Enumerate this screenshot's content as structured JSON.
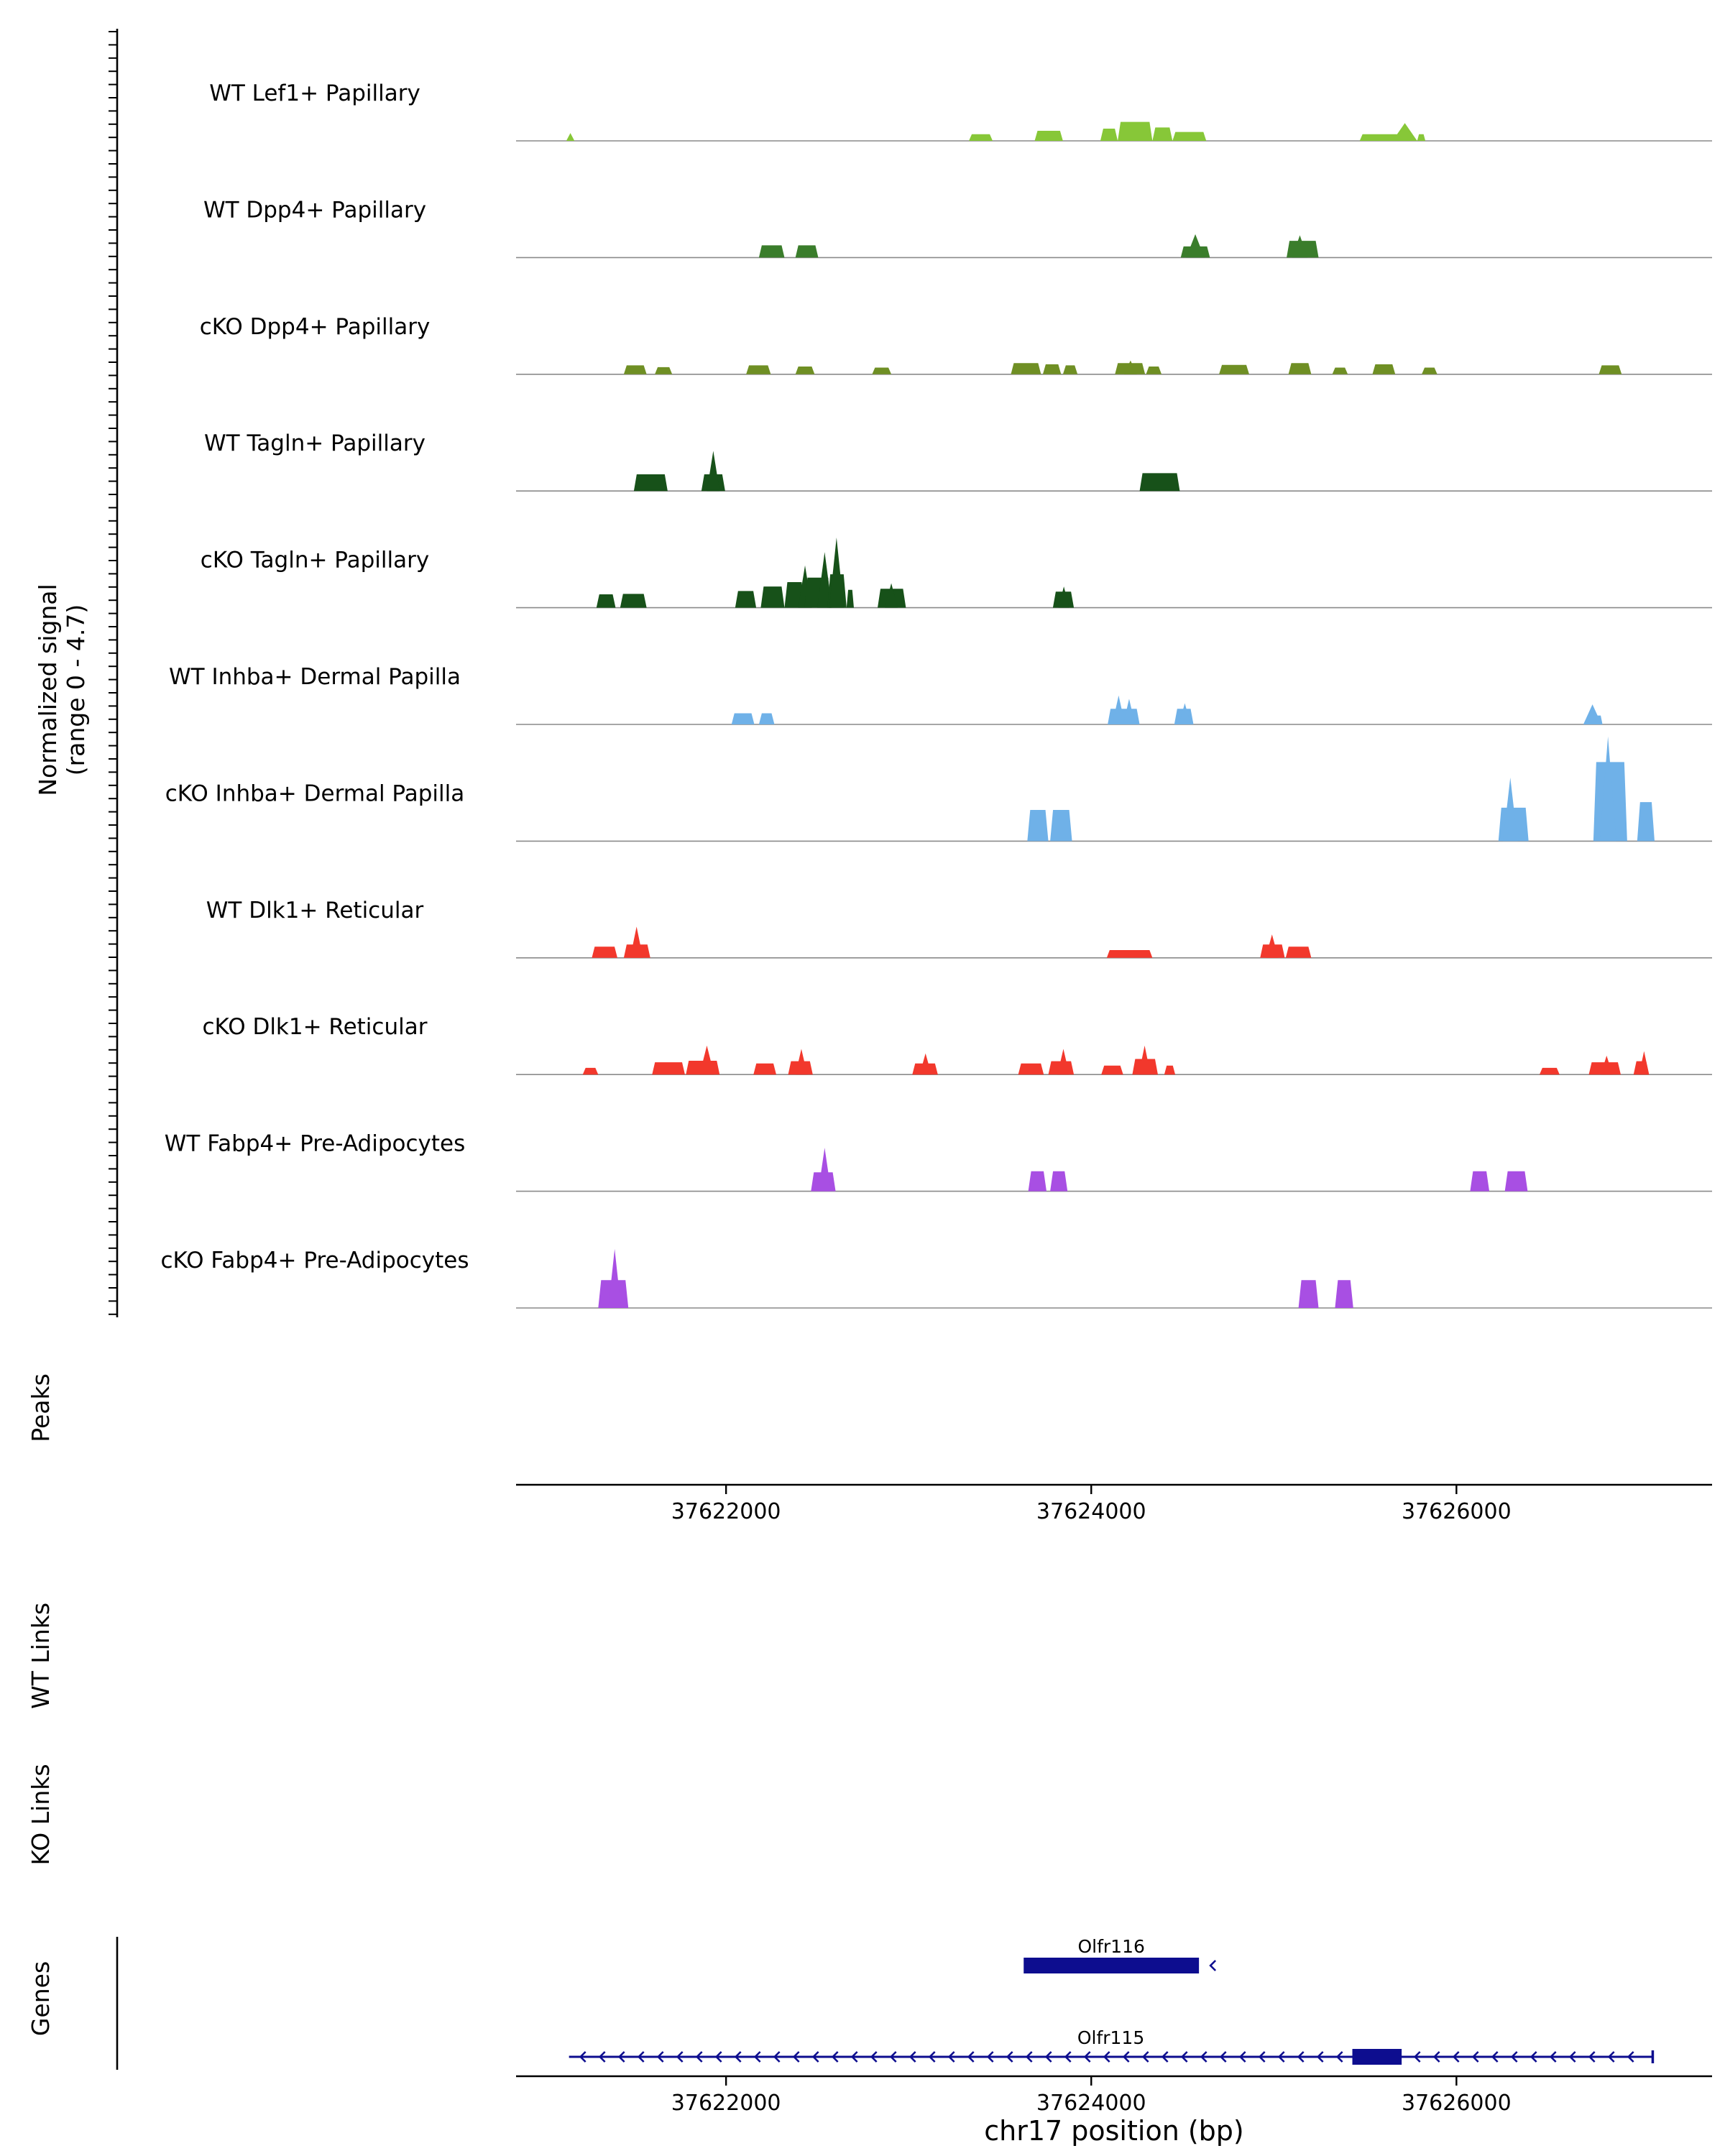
{
  "figure": {
    "xlabel": "chr17 position (bp)",
    "region_chrom": "chr17",
    "region_start": 37620850,
    "region_end": 37627400
  },
  "left_axis": {
    "label_line1": "Normalized signal",
    "label_line2": "(range 0 - 4.7)",
    "range_min": 0,
    "range_max": 4.7
  },
  "sections": {
    "peaks_label": "Peaks",
    "wt_links_label": "WT Links",
    "ko_links_label": "KO Links",
    "genes_label": "Genes"
  },
  "colors": {
    "gene": "#0D0D8F",
    "baseline": "#8A8A8A",
    "axis": "#000000"
  },
  "chart_data": {
    "type": "area",
    "title": "",
    "x_axis": {
      "label": "chr17 position (bp)",
      "ticks": [
        37622000,
        37624000,
        37626000
      ],
      "range": [
        37620850,
        37627400
      ]
    },
    "y_axis": {
      "label": "Normalized signal",
      "range": [
        0,
        4.7
      ]
    },
    "tracks": [
      {
        "label": "WT Lef1+ Papillary",
        "color": "#87C738",
        "segments": [
          [
            37621125,
            37621170,
            0.35,
            "s"
          ],
          [
            37623330,
            37623460,
            0.3,
            "b"
          ],
          [
            37623690,
            37623845,
            0.45,
            "b"
          ],
          [
            37624050,
            37624145,
            0.55,
            "b"
          ],
          [
            37624145,
            37624335,
            0.85,
            "b"
          ],
          [
            37624335,
            37624445,
            0.6,
            "b"
          ],
          [
            37624445,
            37624630,
            0.4,
            "b"
          ],
          [
            37625470,
            37625690,
            0.3,
            "b"
          ],
          [
            37625650,
            37625785,
            0.8,
            "s"
          ],
          [
            37625785,
            37625830,
            0.3,
            "b"
          ]
        ]
      },
      {
        "label": "WT Dpp4+ Papillary",
        "color": "#3A7D2B",
        "segments": [
          [
            37622180,
            37622320,
            0.55,
            "b"
          ],
          [
            37622380,
            37622505,
            0.55,
            "b"
          ],
          [
            37624490,
            37624650,
            0.5,
            "b"
          ],
          [
            37624520,
            37624620,
            1.05,
            "s"
          ],
          [
            37625070,
            37625245,
            0.75,
            "b"
          ],
          [
            37625100,
            37625185,
            1.0,
            "s"
          ]
        ]
      },
      {
        "label": "cKO Dpp4+ Papillary",
        "color": "#6F8F24",
        "segments": [
          [
            37621440,
            37621565,
            0.4,
            "b"
          ],
          [
            37621610,
            37621705,
            0.32,
            "b"
          ],
          [
            37622110,
            37622245,
            0.4,
            "b"
          ],
          [
            37622380,
            37622485,
            0.35,
            "b"
          ],
          [
            37622800,
            37622905,
            0.3,
            "b"
          ],
          [
            37623560,
            37623725,
            0.5,
            "b"
          ],
          [
            37623735,
            37623835,
            0.45,
            "b"
          ],
          [
            37623845,
            37623925,
            0.4,
            "b"
          ],
          [
            37624130,
            37624295,
            0.5,
            "b"
          ],
          [
            37624180,
            37624250,
            0.62,
            "s"
          ],
          [
            37624300,
            37624385,
            0.35,
            "b"
          ],
          [
            37624700,
            37624865,
            0.42,
            "b"
          ],
          [
            37625080,
            37625205,
            0.5,
            "b"
          ],
          [
            37625320,
            37625405,
            0.3,
            "b"
          ],
          [
            37625540,
            37625665,
            0.45,
            "b"
          ],
          [
            37625810,
            37625895,
            0.3,
            "b"
          ],
          [
            37626780,
            37626905,
            0.4,
            "b"
          ]
        ]
      },
      {
        "label": "WT Tagln+ Papillary",
        "color": "#175119",
        "segments": [
          [
            37621495,
            37621680,
            0.75,
            "b"
          ],
          [
            37621865,
            37621995,
            0.75,
            "b"
          ],
          [
            37621895,
            37621965,
            1.8,
            "s"
          ],
          [
            37624265,
            37624485,
            0.8,
            "b"
          ]
        ]
      },
      {
        "label": "cKO Tagln+ Papillary",
        "color": "#175119",
        "segments": [
          [
            37621290,
            37621395,
            0.6,
            "b"
          ],
          [
            37621420,
            37621565,
            0.62,
            "b"
          ],
          [
            37622050,
            37622165,
            0.75,
            "b"
          ],
          [
            37622190,
            37622320,
            0.95,
            "b"
          ],
          [
            37622320,
            37622430,
            1.15,
            "b"
          ],
          [
            37622395,
            37622470,
            1.9,
            "s"
          ],
          [
            37622430,
            37622575,
            1.35,
            "b"
          ],
          [
            37622500,
            37622580,
            2.5,
            "s"
          ],
          [
            37622555,
            37622660,
            1.5,
            "b"
          ],
          [
            37622565,
            37622645,
            3.15,
            "s"
          ],
          [
            37622660,
            37622700,
            0.8,
            "b"
          ],
          [
            37622830,
            37622985,
            0.85,
            "b"
          ],
          [
            37622870,
            37622940,
            1.1,
            "s"
          ],
          [
            37623790,
            37623905,
            0.72,
            "b"
          ],
          [
            37623820,
            37623880,
            0.95,
            "s"
          ]
        ]
      },
      {
        "label": "WT Inhba+ Dermal Papilla",
        "color": "#6FB1E8",
        "segments": [
          [
            37622030,
            37622155,
            0.5,
            "b"
          ],
          [
            37622180,
            37622265,
            0.5,
            "b"
          ],
          [
            37624090,
            37624265,
            0.7,
            "b"
          ],
          [
            37624115,
            37624185,
            1.3,
            "s"
          ],
          [
            37624175,
            37624240,
            1.15,
            "s"
          ],
          [
            37624455,
            37624560,
            0.7,
            "b"
          ],
          [
            37624480,
            37624545,
            0.95,
            "s"
          ],
          [
            37626695,
            37626795,
            0.9,
            "s"
          ],
          [
            37626755,
            37626800,
            0.4,
            "b"
          ]
        ]
      },
      {
        "label": "cKO Inhba+ Dermal Papilla",
        "color": "#6FB1E8",
        "segments": [
          [
            37623650,
            37623765,
            1.4,
            "b"
          ],
          [
            37623775,
            37623895,
            1.4,
            "b"
          ],
          [
            37626230,
            37626395,
            1.5,
            "b"
          ],
          [
            37626255,
            37626335,
            2.85,
            "s"
          ],
          [
            37626750,
            37626935,
            3.55,
            "b"
          ],
          [
            37626785,
            37626875,
            4.7,
            "s"
          ],
          [
            37626990,
            37627085,
            1.75,
            "b"
          ]
        ]
      },
      {
        "label": "WT Dlk1+ Reticular",
        "color": "#F2382C",
        "segments": [
          [
            37621265,
            37621405,
            0.5,
            "b"
          ],
          [
            37621440,
            37621585,
            0.6,
            "b"
          ],
          [
            37621475,
            37621545,
            1.4,
            "s"
          ],
          [
            37624085,
            37624335,
            0.35,
            "b"
          ],
          [
            37624925,
            37625060,
            0.6,
            "b"
          ],
          [
            37624955,
            37625025,
            1.05,
            "s"
          ],
          [
            37625065,
            37625205,
            0.5,
            "b"
          ]
        ]
      },
      {
        "label": "cKO Dlk1+ Reticular",
        "color": "#F2382C",
        "segments": [
          [
            37621215,
            37621300,
            0.3,
            "b"
          ],
          [
            37621595,
            37621775,
            0.55,
            "b"
          ],
          [
            37621780,
            37621965,
            0.62,
            "b"
          ],
          [
            37621855,
            37621935,
            1.3,
            "s"
          ],
          [
            37622150,
            37622275,
            0.5,
            "b"
          ],
          [
            37622340,
            37622475,
            0.6,
            "b"
          ],
          [
            37622380,
            37622445,
            1.15,
            "s"
          ],
          [
            37623020,
            37623160,
            0.5,
            "b"
          ],
          [
            37623060,
            37623125,
            0.95,
            "s"
          ],
          [
            37623600,
            37623740,
            0.5,
            "b"
          ],
          [
            37623765,
            37623905,
            0.6,
            "b"
          ],
          [
            37623815,
            37623880,
            1.15,
            "s"
          ],
          [
            37624055,
            37624175,
            0.4,
            "b"
          ],
          [
            37624225,
            37624365,
            0.7,
            "b"
          ],
          [
            37624260,
            37624325,
            1.3,
            "s"
          ],
          [
            37624400,
            37624460,
            0.4,
            "b"
          ],
          [
            37626455,
            37626565,
            0.3,
            "b"
          ],
          [
            37626725,
            37626900,
            0.55,
            "b"
          ],
          [
            37626790,
            37626855,
            0.85,
            "s"
          ],
          [
            37626970,
            37627055,
            0.6,
            "b"
          ],
          [
            37627000,
            37627055,
            1.05,
            "s"
          ]
        ]
      },
      {
        "label": "WT Fabp4+ Pre-Adipocytes",
        "color": "#A84FE3",
        "segments": [
          [
            37622465,
            37622600,
            0.85,
            "b"
          ],
          [
            37622505,
            37622575,
            1.95,
            "s"
          ],
          [
            37623655,
            37623755,
            0.9,
            "b"
          ],
          [
            37623775,
            37623870,
            0.9,
            "b"
          ],
          [
            37626075,
            37626180,
            0.9,
            "b"
          ],
          [
            37626265,
            37626390,
            0.9,
            "b"
          ]
        ]
      },
      {
        "label": "cKO Fabp4+ Pre-Adipocytes",
        "color": "#A84FE3",
        "segments": [
          [
            37621300,
            37621465,
            1.25,
            "b"
          ],
          [
            37621355,
            37621425,
            2.65,
            "s"
          ],
          [
            37625135,
            37625245,
            1.25,
            "b"
          ],
          [
            37625335,
            37625435,
            1.25,
            "b"
          ]
        ]
      }
    ],
    "peaks": [],
    "wt_links": [],
    "ko_links": [],
    "genes": [
      {
        "name": "Olfr116",
        "strand": "-",
        "start": 37623630,
        "end": 37624590,
        "exons": [
          [
            37623630,
            37624590
          ]
        ]
      },
      {
        "name": "Olfr115",
        "strand": "-",
        "start": 37621140,
        "end": 37627075,
        "exons": [
          [
            37625430,
            37625700
          ]
        ]
      }
    ]
  }
}
